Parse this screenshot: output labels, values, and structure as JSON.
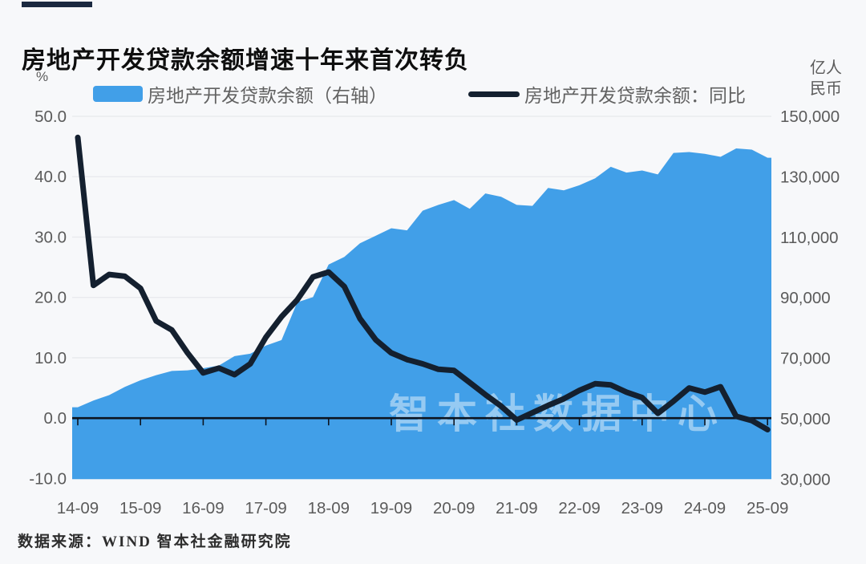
{
  "title": "房地产开发贷款余额增速十年来首次转负",
  "legend": {
    "items": [
      {
        "label": "房地产开发贷款余额（右轴）",
        "swatch": "area"
      },
      {
        "label": "房地产开发贷款余额：同比",
        "swatch": "line"
      }
    ]
  },
  "watermark": {
    "text": "智本社数据中心"
  },
  "footer": {
    "source": "数据来源：WIND 智本社金融研究院"
  },
  "colors": {
    "area_blue": "#419fe8",
    "line_navy": "#14202f",
    "grid": "#e7e9ec",
    "axis_text": "#5b5b5b",
    "zero_axis": "#0c1420",
    "watermark": "rgba(255,255,255,0.45)"
  },
  "chart_data": {
    "type": "area+line combo (area on right axis, line on left axis)",
    "title": "房地产开发贷款余额增速十年来首次转负",
    "x": [
      "14-09",
      "14-12",
      "15-03",
      "15-06",
      "15-09",
      "15-12",
      "16-03",
      "16-06",
      "16-09",
      "16-12",
      "17-03",
      "17-06",
      "17-09",
      "17-12",
      "18-03",
      "18-06",
      "18-09",
      "18-12",
      "19-03",
      "19-06",
      "19-09",
      "19-12",
      "20-03",
      "20-06",
      "20-09",
      "20-12",
      "21-03",
      "21-06",
      "21-09",
      "21-12",
      "22-03",
      "22-06",
      "22-09",
      "22-12",
      "23-03",
      "23-06",
      "23-09",
      "23-12",
      "24-03",
      "24-06",
      "24-09",
      "24-12",
      "25-03",
      "25-06",
      "25-09"
    ],
    "x_tick_labels": [
      "14-09",
      "15-09",
      "16-09",
      "17-09",
      "18-09",
      "19-09",
      "20-09",
      "21-09",
      "22-09",
      "23-09",
      "24-09",
      "25-09"
    ],
    "series": [
      {
        "name": "房地产开发贷款余额（右轴）",
        "type": "area",
        "axis": "right",
        "unit": "亿人民币",
        "values": [
          53800,
          56000,
          57800,
          60500,
          62700,
          64400,
          65800,
          66000,
          66700,
          67600,
          70700,
          71500,
          74200,
          76000,
          88500,
          90200,
          101000,
          103500,
          108000,
          110500,
          113000,
          112300,
          118800,
          120700,
          122300,
          119400,
          124500,
          123400,
          120700,
          120400,
          126300,
          125500,
          127200,
          129500,
          133300,
          131400,
          132100,
          130800,
          137900,
          138200,
          137600,
          136600,
          139400,
          139000,
          136300
        ]
      },
      {
        "name": "房地产开发贷款余额：同比",
        "type": "line",
        "axis": "left",
        "unit": "%",
        "values": [
          46.5,
          22.0,
          23.8,
          23.5,
          21.5,
          16.1,
          14.6,
          10.8,
          7.5,
          8.3,
          7.2,
          9.0,
          13.4,
          16.8,
          19.6,
          23.4,
          24.2,
          21.8,
          16.5,
          13.0,
          10.8,
          9.7,
          9.0,
          8.1,
          7.9,
          5.9,
          3.9,
          2.0,
          -0.3,
          0.9,
          2.1,
          3.2,
          4.6,
          5.7,
          5.5,
          4.3,
          3.4,
          0.8,
          2.8,
          5.0,
          4.3,
          5.2,
          0.3,
          -0.4,
          -1.9
        ]
      }
    ],
    "axes": {
      "left": {
        "unit": "%",
        "min": -10,
        "max": 50,
        "ticks": [
          50,
          40,
          30,
          20,
          10,
          0,
          -10
        ],
        "tick_labels": [
          "50.0",
          "40.0",
          "30.0",
          "20.0",
          "10.0",
          "0.0",
          "-10.0"
        ]
      },
      "right": {
        "unit": "亿人民币",
        "unit_lines": [
          "亿人",
          "民币"
        ],
        "min": 30000,
        "max": 150000,
        "ticks": [
          150000,
          130000,
          110000,
          90000,
          70000,
          50000,
          30000
        ],
        "tick_labels": [
          "150,000",
          "130,000",
          "110,000",
          "90,000",
          "70,000",
          "50,000",
          "30,000"
        ]
      }
    },
    "grid": true,
    "legend_position": "top",
    "annotations": [
      "智本社数据中心"
    ]
  }
}
